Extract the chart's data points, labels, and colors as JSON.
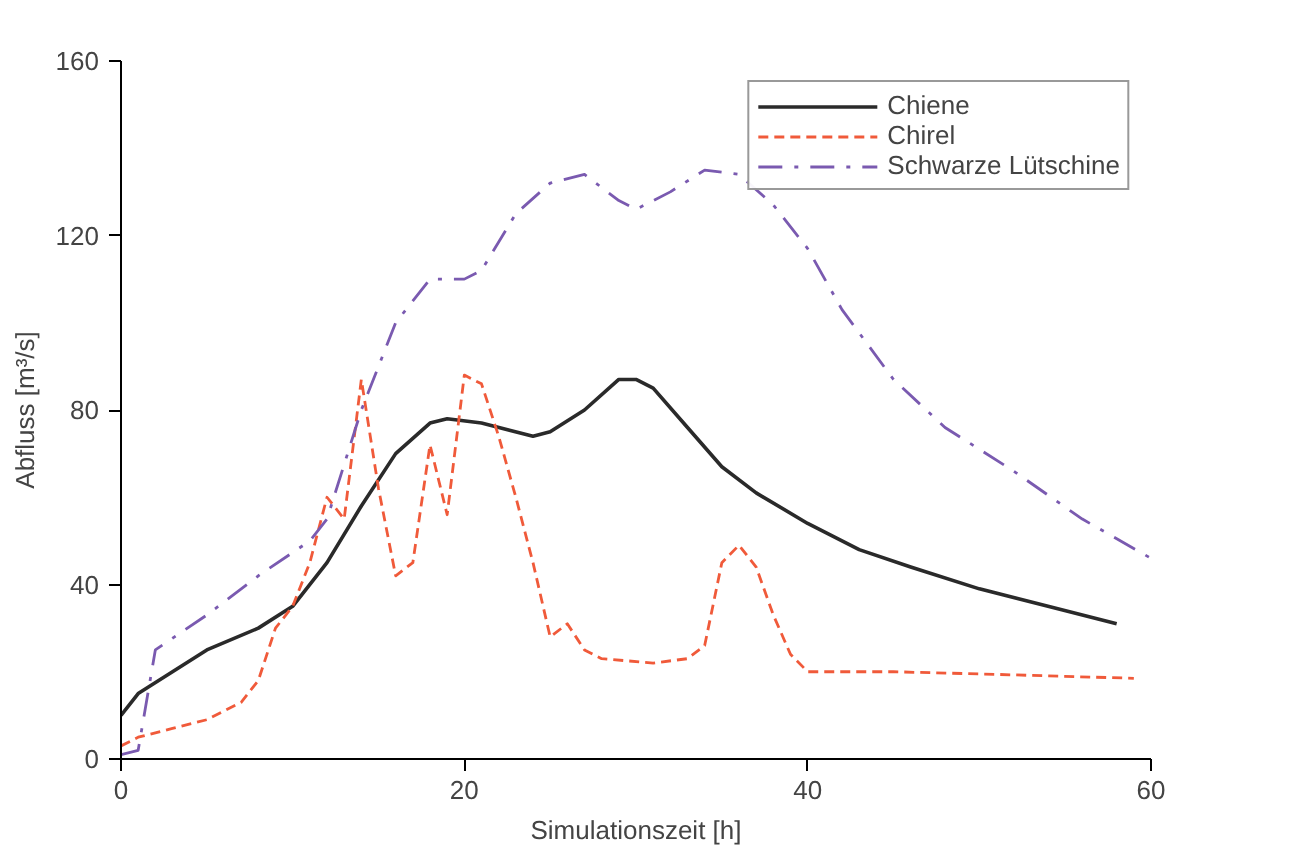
{
  "chart_data": {
    "type": "line",
    "xlabel": "Simulationszeit [h]",
    "ylabel": "Abfluss [m³/s]",
    "xlim": [
      0,
      60
    ],
    "ylim": [
      0,
      160
    ],
    "xticks": [
      0,
      20,
      40,
      60
    ],
    "yticks": [
      0,
      40,
      80,
      120,
      160
    ],
    "grid": false,
    "legend": "top right",
    "marker": "none",
    "series": [
      {
        "name": "Chiene",
        "color": "#2a2a2a",
        "line_style": "solid",
        "x": [
          0,
          1,
          3,
          5,
          8,
          10,
          12,
          14,
          16,
          18,
          19,
          21,
          24,
          25,
          27,
          29,
          30,
          31,
          33,
          35,
          37,
          40,
          43,
          46,
          50,
          54,
          58
        ],
        "values": [
          10,
          15,
          20,
          25,
          30,
          35,
          45,
          58,
          70,
          77,
          78,
          77,
          74,
          75,
          80,
          87,
          87,
          85,
          76,
          67,
          61,
          54,
          48,
          44,
          39,
          35,
          31
        ]
      },
      {
        "name": "Chirel",
        "color": "#f05a3a",
        "line_style": "dashed",
        "x": [
          0,
          1,
          3,
          5,
          7,
          8,
          9,
          10,
          11,
          12,
          13,
          14,
          15,
          16,
          17,
          18,
          19,
          20,
          21,
          22,
          23,
          24,
          25,
          26,
          27,
          28,
          31,
          33,
          34,
          35,
          36,
          37,
          38,
          39,
          40,
          45,
          50,
          59
        ],
        "values": [
          3,
          5,
          7,
          9,
          13,
          18,
          30,
          35,
          45,
          60,
          55,
          87,
          62,
          42,
          45,
          72,
          56,
          88,
          86,
          74,
          60,
          45,
          28,
          31,
          25,
          23,
          22,
          23,
          26,
          45,
          49,
          44,
          33,
          24,
          20,
          20,
          19.5,
          18.5
        ]
      },
      {
        "name": "Schwarze Lütschine",
        "color": "#7a5ab0",
        "line_style": "dashdot",
        "x": [
          0,
          1,
          2,
          5,
          8,
          11,
          12,
          14,
          16,
          18,
          20,
          21,
          23,
          25,
          27,
          29,
          30,
          32,
          34,
          36,
          38,
          40,
          42,
          45,
          48,
          52,
          56,
          60
        ],
        "values": [
          1,
          2,
          25,
          33,
          42,
          50,
          55,
          80,
          100,
          110,
          110,
          112,
          125,
          132,
          134,
          128,
          126,
          130,
          135,
          134,
          127,
          117,
          103,
          87,
          76,
          66,
          55,
          46
        ]
      }
    ]
  }
}
